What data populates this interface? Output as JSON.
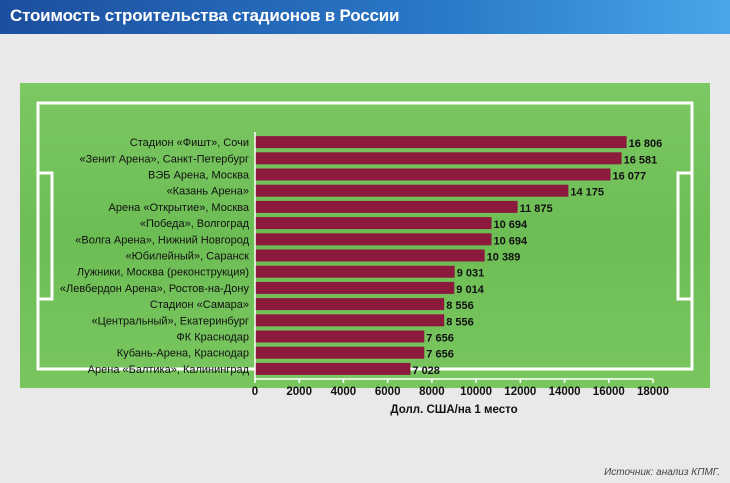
{
  "header": {
    "title": "Стоимость строительства стадионов в России"
  },
  "source": "Источник: анализ КПМГ.",
  "colors": {
    "bar": "#8c1a3c",
    "field": "#6fbf57",
    "field_light": "#80cc66",
    "lines": "#ffffff",
    "header": "#1c4f9e"
  },
  "chart_data": {
    "type": "bar",
    "orientation": "horizontal",
    "title": "Стоимость строительства стадионов в России",
    "xlabel": "Долл. США/на 1 место",
    "xlim": [
      0,
      18000
    ],
    "xticks": [
      0,
      2000,
      4000,
      6000,
      8000,
      10000,
      12000,
      14000,
      16000,
      18000
    ],
    "categories": [
      "Стадион «Фишт», Сочи",
      "«Зенит Арена», Санкт-Петербург",
      "ВЭБ Арена, Москва",
      "«Казань Арена»",
      "Арена «Открытие», Москва",
      "«Победа», Волгоград",
      "«Волга Арена», Нижний Новгород",
      "«Юбилейный», Саранск",
      "Лужники, Москва (реконструкция)",
      "«Левбердон Арена», Ростов-на-Дону",
      "Стадион «Самара»",
      "«Центральный», Екатеринбург",
      "ФК Краснодар",
      "Кубань-Арена, Краснодар",
      "Арена «Балтика», Калининград"
    ],
    "values": [
      16806,
      16581,
      16077,
      14175,
      11875,
      10694,
      10694,
      10389,
      9031,
      9014,
      8556,
      8556,
      7656,
      7656,
      7028
    ],
    "value_labels": [
      "16 806",
      "16 581",
      "16 077",
      "14 175",
      "11 875",
      "10 694",
      "10 694",
      "10 389",
      "9 031",
      "9 014",
      "8 556",
      "8 556",
      "7 656",
      "7 656",
      "7 028"
    ],
    "grid": false
  }
}
